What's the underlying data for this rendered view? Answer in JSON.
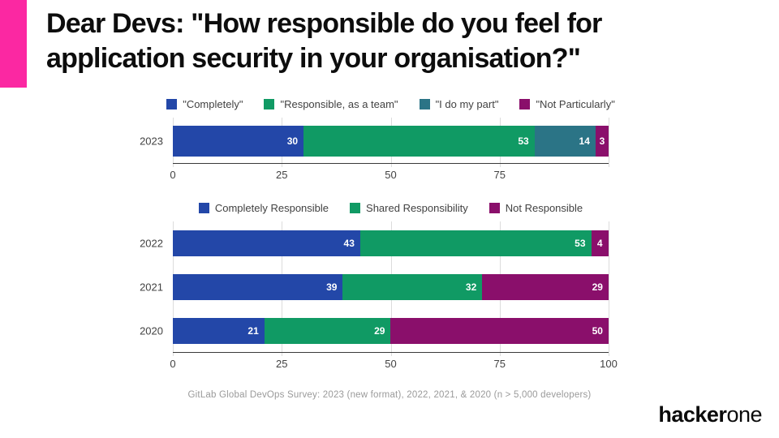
{
  "slide": {
    "title_line1": "Dear Devs: \"How responsible do you feel for",
    "title_line2": "application security in your organisation?\"",
    "caption": "GitLab Global DevOps Survey: 2023 (new format), 2022, 2021, & 2020 (n > 5,000 developers)",
    "brand": {
      "bold": "hacker",
      "light": "one"
    }
  },
  "theme": {
    "accent_pink": "#FB28A2",
    "series_blue": "#2347A8",
    "series_green": "#109A64",
    "series_teal": "#2B7486",
    "series_purple": "#8A0F6B"
  },
  "chart_data": [
    {
      "type": "bar",
      "stacked": true,
      "orientation": "horizontal",
      "title": "",
      "categories": [
        "2023"
      ],
      "series": [
        {
          "name": "\"Completely\"",
          "color": "#2347A8",
          "values": [
            30
          ]
        },
        {
          "name": "\"Responsible, as a team\"",
          "color": "#109A64",
          "values": [
            53
          ]
        },
        {
          "name": "\"I do my part\"",
          "color": "#2B7486",
          "values": [
            14
          ]
        },
        {
          "name": "\"Not Particularly\"",
          "color": "#8A0F6B",
          "values": [
            3
          ]
        }
      ],
      "xlim": [
        0,
        100
      ],
      "xticks": [
        0,
        25,
        50,
        75
      ],
      "gridlines": [
        0,
        25,
        50,
        75,
        100
      ],
      "legend_position": "top",
      "grid": true
    },
    {
      "type": "bar",
      "stacked": true,
      "orientation": "horizontal",
      "title": "",
      "categories": [
        "2022",
        "2021",
        "2020"
      ],
      "series": [
        {
          "name": "Completely Responsible",
          "color": "#2347A8",
          "values": [
            43,
            39,
            21
          ]
        },
        {
          "name": "Shared Responsibility",
          "color": "#109A64",
          "values": [
            53,
            32,
            29
          ]
        },
        {
          "name": "Not Responsible",
          "color": "#8A0F6B",
          "values": [
            4,
            29,
            50
          ]
        }
      ],
      "xlim": [
        0,
        100
      ],
      "xticks": [
        0,
        25,
        50,
        75,
        100
      ],
      "gridlines": [
        0,
        25,
        50,
        75,
        100
      ],
      "legend_position": "top",
      "grid": true
    }
  ]
}
